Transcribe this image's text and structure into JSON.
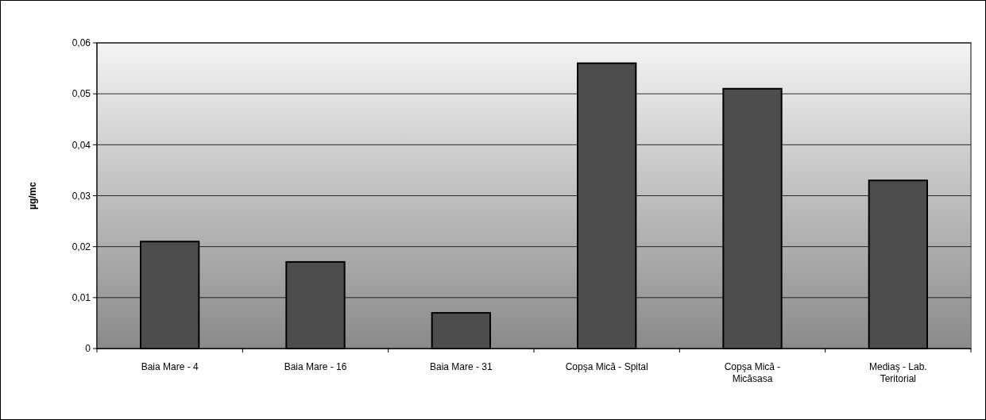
{
  "chart_data": {
    "type": "bar",
    "ylabel": "µg/mc",
    "categories": [
      "Baia Mare - 4",
      "Baia Mare - 16",
      "Baia Mare - 31",
      "Copşa Mică - Spital",
      "Copşa Mică - Micăsasa",
      "Mediaş - Lab. Teritorial"
    ],
    "values": [
      0.021,
      0.017,
      0.007,
      0.056,
      0.051,
      0.033
    ],
    "color": "#4d4d4d",
    "ylim": [
      0,
      0.06
    ],
    "yticks": [
      0,
      {
        "value": 0.01,
        "label": "0,01"
      },
      {
        "value": 0.02,
        "label": "0,02"
      },
      {
        "value": 0.03,
        "label": "0,03"
      },
      {
        "value": 0.04,
        "label": "0,04"
      },
      {
        "value": 0.05,
        "label": "0,05"
      },
      {
        "value": 0.06,
        "label": "0,06"
      }
    ],
    "grid": "y"
  }
}
